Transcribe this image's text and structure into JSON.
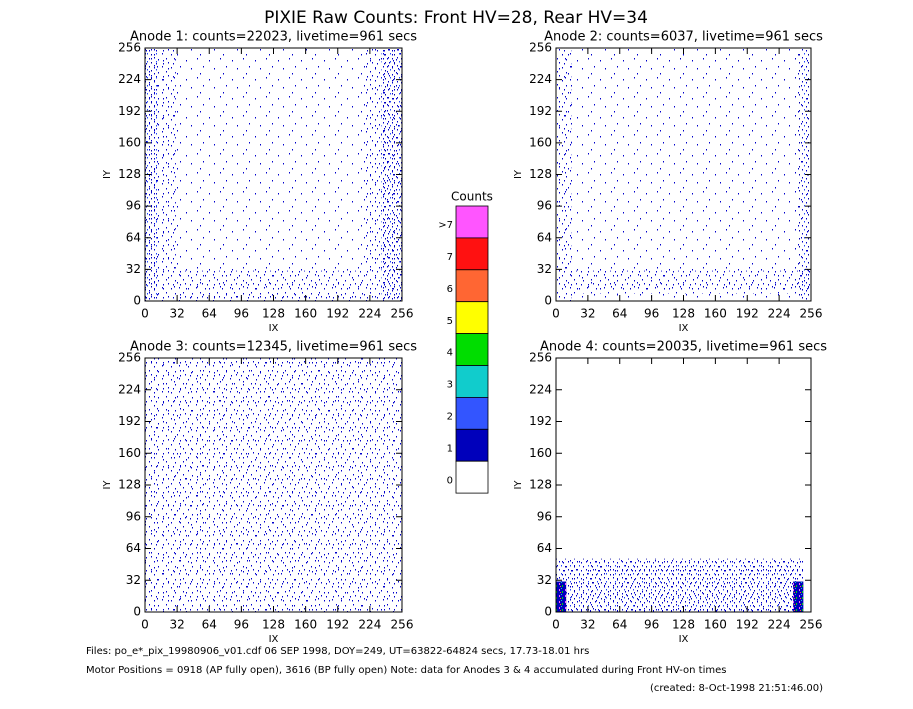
{
  "title": "PIXIE Raw Counts:  Front HV=28, Rear HV=34",
  "chart_data": [
    {
      "type": "image",
      "title": "Anode 1: counts=22023, livetime=961 secs",
      "xlabel": "IX",
      "ylabel": "IY",
      "xlim": [
        0,
        256
      ],
      "ylim": [
        0,
        256
      ],
      "xticks": [
        0,
        32,
        64,
        96,
        128,
        160,
        192,
        224,
        256
      ],
      "yticks": [
        0,
        32,
        64,
        96,
        128,
        160,
        192,
        224,
        256
      ]
    },
    {
      "type": "image",
      "title": "Anode 2: counts=6037, livetime=961 secs",
      "xlabel": "IX",
      "ylabel": "IY",
      "xlim": [
        0,
        256
      ],
      "ylim": [
        0,
        256
      ],
      "xticks": [
        0,
        32,
        64,
        96,
        128,
        160,
        192,
        224,
        256
      ],
      "yticks": [
        0,
        32,
        64,
        96,
        128,
        160,
        192,
        224,
        256
      ]
    },
    {
      "type": "image",
      "title": "Anode 3: counts=12345, livetime=961 secs",
      "xlabel": "IX",
      "ylabel": "IY",
      "xlim": [
        0,
        256
      ],
      "ylim": [
        0,
        256
      ],
      "xticks": [
        0,
        32,
        64,
        96,
        128,
        160,
        192,
        224,
        256
      ],
      "yticks": [
        0,
        32,
        64,
        96,
        128,
        160,
        192,
        224,
        256
      ]
    },
    {
      "type": "image",
      "title": "Anode 4: counts=20035, livetime=961 secs",
      "xlabel": "IX",
      "ylabel": "IY",
      "xlim": [
        0,
        256
      ],
      "ylim": [
        0,
        256
      ],
      "xticks": [
        0,
        32,
        64,
        96,
        128,
        160,
        192,
        224,
        256
      ],
      "yticks": [
        0,
        32,
        64,
        96,
        128,
        160,
        192,
        224,
        256
      ]
    }
  ],
  "colorbar": {
    "title": "Counts",
    "levels": [
      {
        "label": ">7",
        "color": "#ff55ff"
      },
      {
        "label": "7",
        "color": "#ff1111"
      },
      {
        "label": "6",
        "color": "#ff6633"
      },
      {
        "label": "5",
        "color": "#ffff00"
      },
      {
        "label": "4",
        "color": "#00dd00"
      },
      {
        "label": "3",
        "color": "#11cccc"
      },
      {
        "label": "2",
        "color": "#3355ff"
      },
      {
        "label": "1",
        "color": "#0000bb"
      },
      {
        "label": "0",
        "color": "#ffffff"
      }
    ]
  },
  "footer": [
    "Files: po_e*_pix_19980906_v01.cdf    06 SEP 1998, DOY=249, UT=63822-64824 secs, 17.73-18.01 hrs",
    "Motor Positions = 0918 (AP fully open), 3616 (BP fully open)    Note: data for Anodes 3 & 4 accumulated during Front HV-on times",
    "(created:  8-Oct-1998 21:51:46.00)"
  ]
}
